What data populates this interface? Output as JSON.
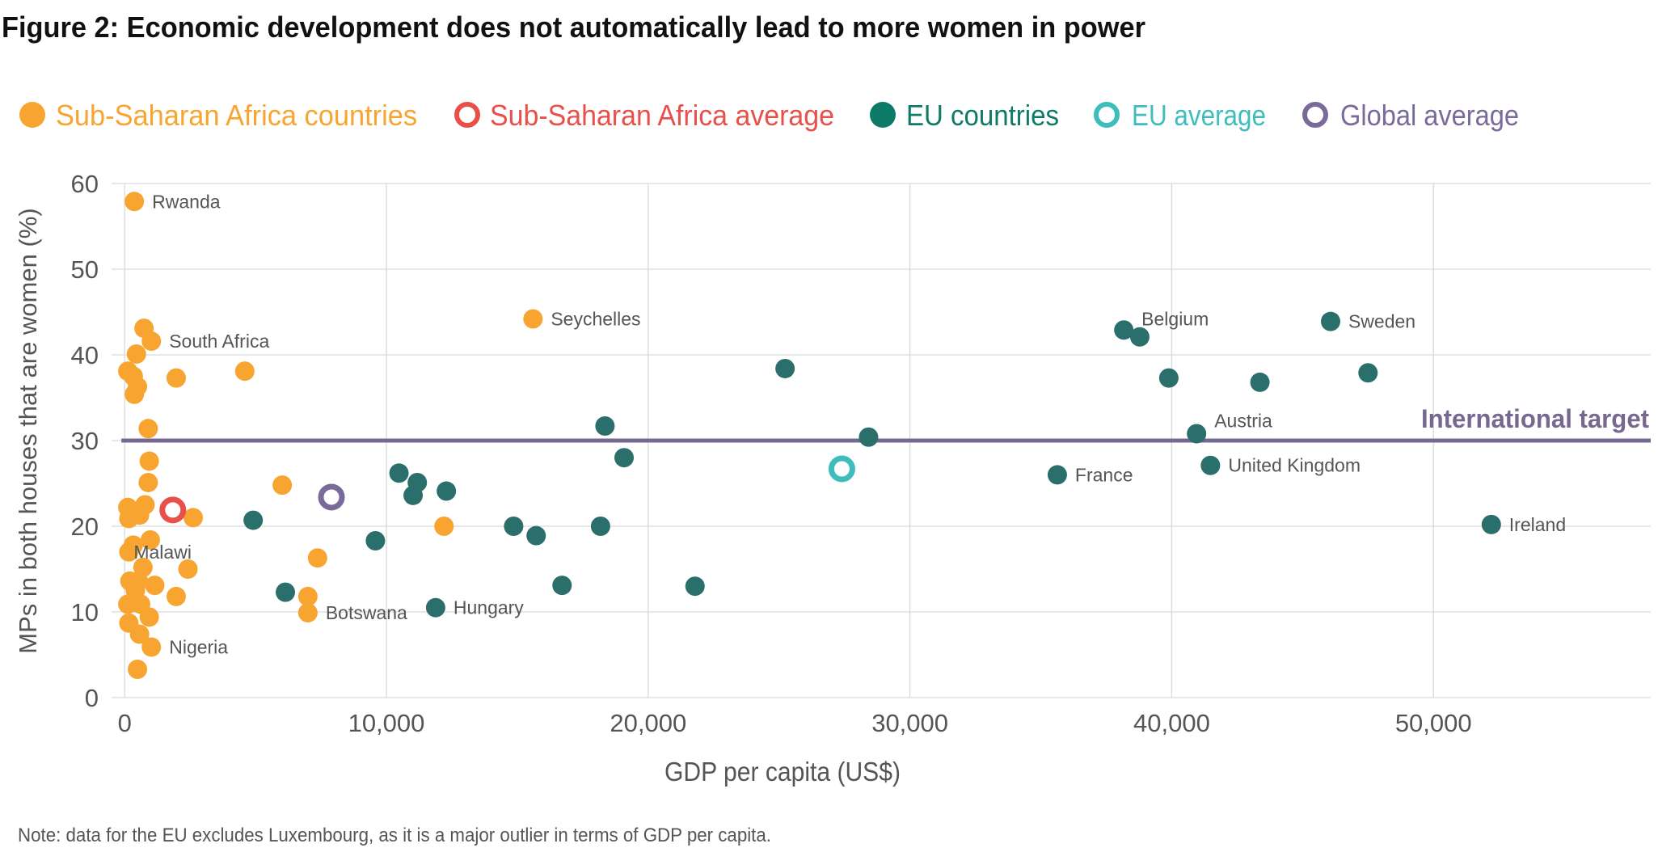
{
  "chart_data": {
    "type": "scatter",
    "title": "Figure 2: Economic development does not automatically lead to more women in power",
    "xlabel": "GDP per capita (US$)",
    "ylabel": "MPs in both houses that are women (%)",
    "xlim": [
      -500,
      58300
    ],
    "ylim": [
      0,
      60
    ],
    "xticks": [
      0,
      10000,
      20000,
      30000,
      40000,
      50000
    ],
    "xtick_labels": [
      "0",
      "10,000",
      "20,000",
      "30,000",
      "40,000",
      "50,000"
    ],
    "yticks": [
      0,
      10,
      20,
      30,
      40,
      50,
      60
    ],
    "ytick_labels": [
      "0",
      "10",
      "20",
      "30",
      "40",
      "50",
      "60"
    ],
    "grid": true,
    "legend_position": "top",
    "reference_line": {
      "y": 30,
      "label": "International target",
      "color": "#76688f"
    },
    "note": "Note: data for the EU excludes Luxembourg, as it is a major outlier in terms of GDP per capita.",
    "series": [
      {
        "name": "Sub-Saharan Africa countries",
        "color": "#f7a530",
        "marker": "filled",
        "points": [
          {
            "x": 370,
            "y": 57.9,
            "label": "Rwanda"
          },
          {
            "x": 740,
            "y": 43.1
          },
          {
            "x": 1020,
            "y": 41.6,
            "label": "South Africa"
          },
          {
            "x": 450,
            "y": 40.1
          },
          {
            "x": 120,
            "y": 38.1
          },
          {
            "x": 330,
            "y": 37.5
          },
          {
            "x": 490,
            "y": 36.3
          },
          {
            "x": 370,
            "y": 35.4
          },
          {
            "x": 1970,
            "y": 37.3
          },
          {
            "x": 4590,
            "y": 38.1
          },
          {
            "x": 15600,
            "y": 44.2,
            "label": "Seychelles"
          },
          {
            "x": 900,
            "y": 31.4
          },
          {
            "x": 940,
            "y": 27.6
          },
          {
            "x": 900,
            "y": 25.1
          },
          {
            "x": 780,
            "y": 22.5
          },
          {
            "x": 120,
            "y": 22.2
          },
          {
            "x": 160,
            "y": 20.9
          },
          {
            "x": 570,
            "y": 21.3
          },
          {
            "x": 2620,
            "y": 21.0
          },
          {
            "x": 980,
            "y": 18.4
          },
          {
            "x": 330,
            "y": 17.8
          },
          {
            "x": 160,
            "y": 17.0,
            "label": "Malawi"
          },
          {
            "x": 700,
            "y": 15.2
          },
          {
            "x": 2420,
            "y": 15.0
          },
          {
            "x": 200,
            "y": 13.6
          },
          {
            "x": 530,
            "y": 13.6
          },
          {
            "x": 1150,
            "y": 13.1
          },
          {
            "x": 410,
            "y": 12.5
          },
          {
            "x": 1970,
            "y": 11.8
          },
          {
            "x": 120,
            "y": 10.9
          },
          {
            "x": 610,
            "y": 10.9
          },
          {
            "x": 940,
            "y": 9.4
          },
          {
            "x": 160,
            "y": 8.7
          },
          {
            "x": 570,
            "y": 7.4
          },
          {
            "x": 1020,
            "y": 5.9,
            "label": "Nigeria"
          },
          {
            "x": 490,
            "y": 3.3
          },
          {
            "x": 6020,
            "y": 24.8
          },
          {
            "x": 7370,
            "y": 16.3
          },
          {
            "x": 7000,
            "y": 11.8
          },
          {
            "x": 7000,
            "y": 9.9,
            "label": "Botswana"
          },
          {
            "x": 12200,
            "y": 20.0
          }
        ]
      },
      {
        "name": "Sub-Saharan Africa average",
        "color": "#e8504a",
        "marker": "ring",
        "points": [
          {
            "x": 1840,
            "y": 21.9
          }
        ]
      },
      {
        "name": "EU countries",
        "color": "#2a6f6b",
        "legend_color": "#0e7a68",
        "marker": "filled",
        "points": [
          {
            "x": 4910,
            "y": 20.7
          },
          {
            "x": 6140,
            "y": 12.3
          },
          {
            "x": 9580,
            "y": 18.3
          },
          {
            "x": 10480,
            "y": 26.2
          },
          {
            "x": 11180,
            "y": 25.1
          },
          {
            "x": 11020,
            "y": 23.6
          },
          {
            "x": 12290,
            "y": 24.1
          },
          {
            "x": 11880,
            "y": 10.5,
            "label": "Hungary"
          },
          {
            "x": 14860,
            "y": 20.0
          },
          {
            "x": 15720,
            "y": 18.9
          },
          {
            "x": 16710,
            "y": 13.1
          },
          {
            "x": 18180,
            "y": 20.0
          },
          {
            "x": 18350,
            "y": 31.7
          },
          {
            "x": 19080,
            "y": 28.0
          },
          {
            "x": 21790,
            "y": 13.0
          },
          {
            "x": 25230,
            "y": 38.4
          },
          {
            "x": 28420,
            "y": 30.4
          },
          {
            "x": 35630,
            "y": 26.0,
            "label": "France"
          },
          {
            "x": 38170,
            "y": 42.9,
            "label": "Belgium"
          },
          {
            "x": 38780,
            "y": 42.1
          },
          {
            "x": 39890,
            "y": 37.3
          },
          {
            "x": 40950,
            "y": 30.8,
            "label": "Austria"
          },
          {
            "x": 41480,
            "y": 27.1,
            "label": "United Kingdom"
          },
          {
            "x": 43370,
            "y": 36.8
          },
          {
            "x": 46070,
            "y": 43.9,
            "label": "Sweden"
          },
          {
            "x": 47500,
            "y": 37.9
          },
          {
            "x": 52210,
            "y": 20.2,
            "label": "Ireland"
          }
        ]
      },
      {
        "name": "EU average",
        "color": "#3dbdbb",
        "marker": "ring",
        "points": [
          {
            "x": 27400,
            "y": 26.7
          }
        ]
      },
      {
        "name": "Global average",
        "color": "#7a6a9a",
        "marker": "ring",
        "points": [
          {
            "x": 7900,
            "y": 23.4
          }
        ]
      }
    ]
  }
}
